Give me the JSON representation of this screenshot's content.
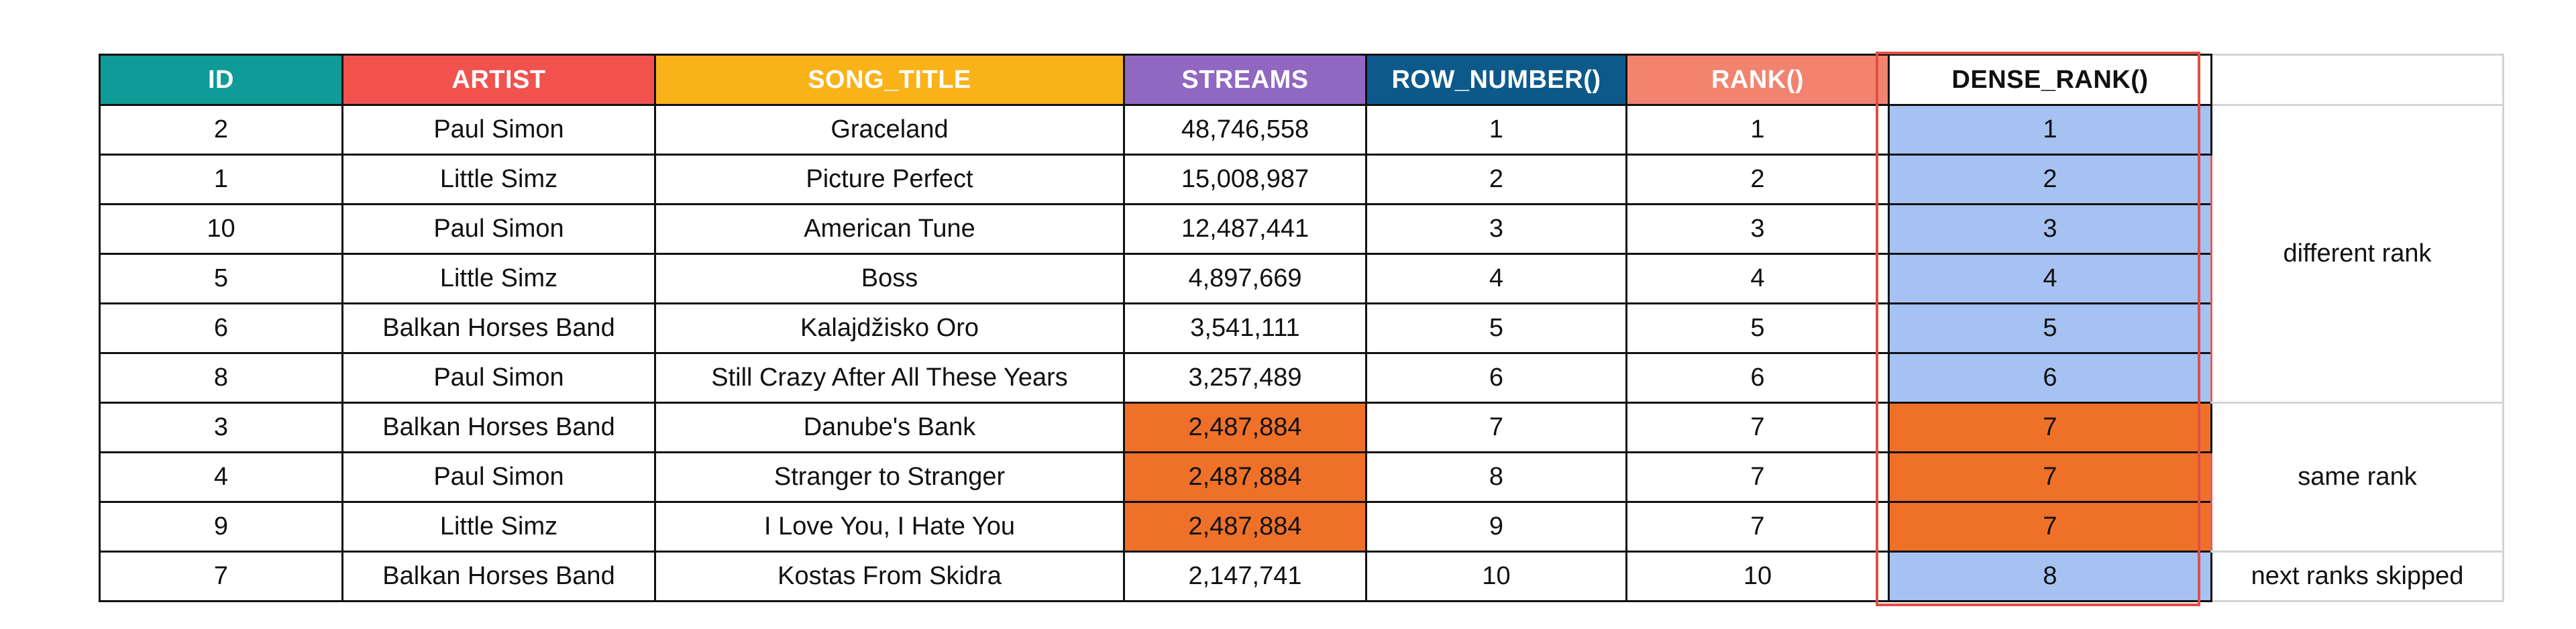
{
  "headers": [
    {
      "label": "ID",
      "color": "#0f9b97"
    },
    {
      "label": "ARTIST",
      "color": "#f1524e"
    },
    {
      "label": "SONG_TITLE",
      "color": "#f9b218"
    },
    {
      "label": "STREAMS",
      "color": "#9067c1"
    },
    {
      "label": "ROW_NUMBER()",
      "color": "#0d5a8a"
    },
    {
      "label": "RANK()",
      "color": "#f2836f"
    },
    {
      "label": "DENSE_RANK()",
      "color": "#ffffff"
    }
  ],
  "rows": [
    {
      "id": "2",
      "artist": "Paul Simon",
      "song_title": "Graceland",
      "streams": "48,746,558",
      "row_number": "1",
      "rank": "1",
      "dense_rank": "1"
    },
    {
      "id": "1",
      "artist": "Little Simz",
      "song_title": "Picture Perfect",
      "streams": "15,008,987",
      "row_number": "2",
      "rank": "2",
      "dense_rank": "2"
    },
    {
      "id": "10",
      "artist": "Paul Simon",
      "song_title": "American Tune",
      "streams": "12,487,441",
      "row_number": "3",
      "rank": "3",
      "dense_rank": "3"
    },
    {
      "id": "5",
      "artist": "Little Simz",
      "song_title": "Boss",
      "streams": "4,897,669",
      "row_number": "4",
      "rank": "4",
      "dense_rank": "4"
    },
    {
      "id": "6",
      "artist": "Balkan Horses Band",
      "song_title": "Kalajdžisko Oro",
      "streams": "3,541,111",
      "row_number": "5",
      "rank": "5",
      "dense_rank": "5"
    },
    {
      "id": "8",
      "artist": "Paul Simon",
      "song_title": "Still Crazy After All These Years",
      "streams": "3,257,489",
      "row_number": "6",
      "rank": "6",
      "dense_rank": "6"
    },
    {
      "id": "3",
      "artist": "Balkan Horses Band",
      "song_title": "Danube's Bank",
      "streams": "2,487,884",
      "row_number": "7",
      "rank": "7",
      "dense_rank": "7"
    },
    {
      "id": "4",
      "artist": "Paul Simon",
      "song_title": "Stranger to Stranger",
      "streams": "2,487,884",
      "row_number": "8",
      "rank": "7",
      "dense_rank": "7"
    },
    {
      "id": "9",
      "artist": "Little Simz",
      "song_title": "I Love You, I Hate You",
      "streams": "2,487,884",
      "row_number": "9",
      "rank": "7",
      "dense_rank": "7"
    },
    {
      "id": "7",
      "artist": "Balkan Horses Band",
      "song_title": "Kostas From Skidra",
      "streams": "2,147,741",
      "row_number": "10",
      "rank": "10",
      "dense_rank": "8"
    }
  ],
  "notes": {
    "different_rank": "different rank",
    "same_rank": "same rank",
    "next_ranks_skipped": "next ranks skipped"
  }
}
